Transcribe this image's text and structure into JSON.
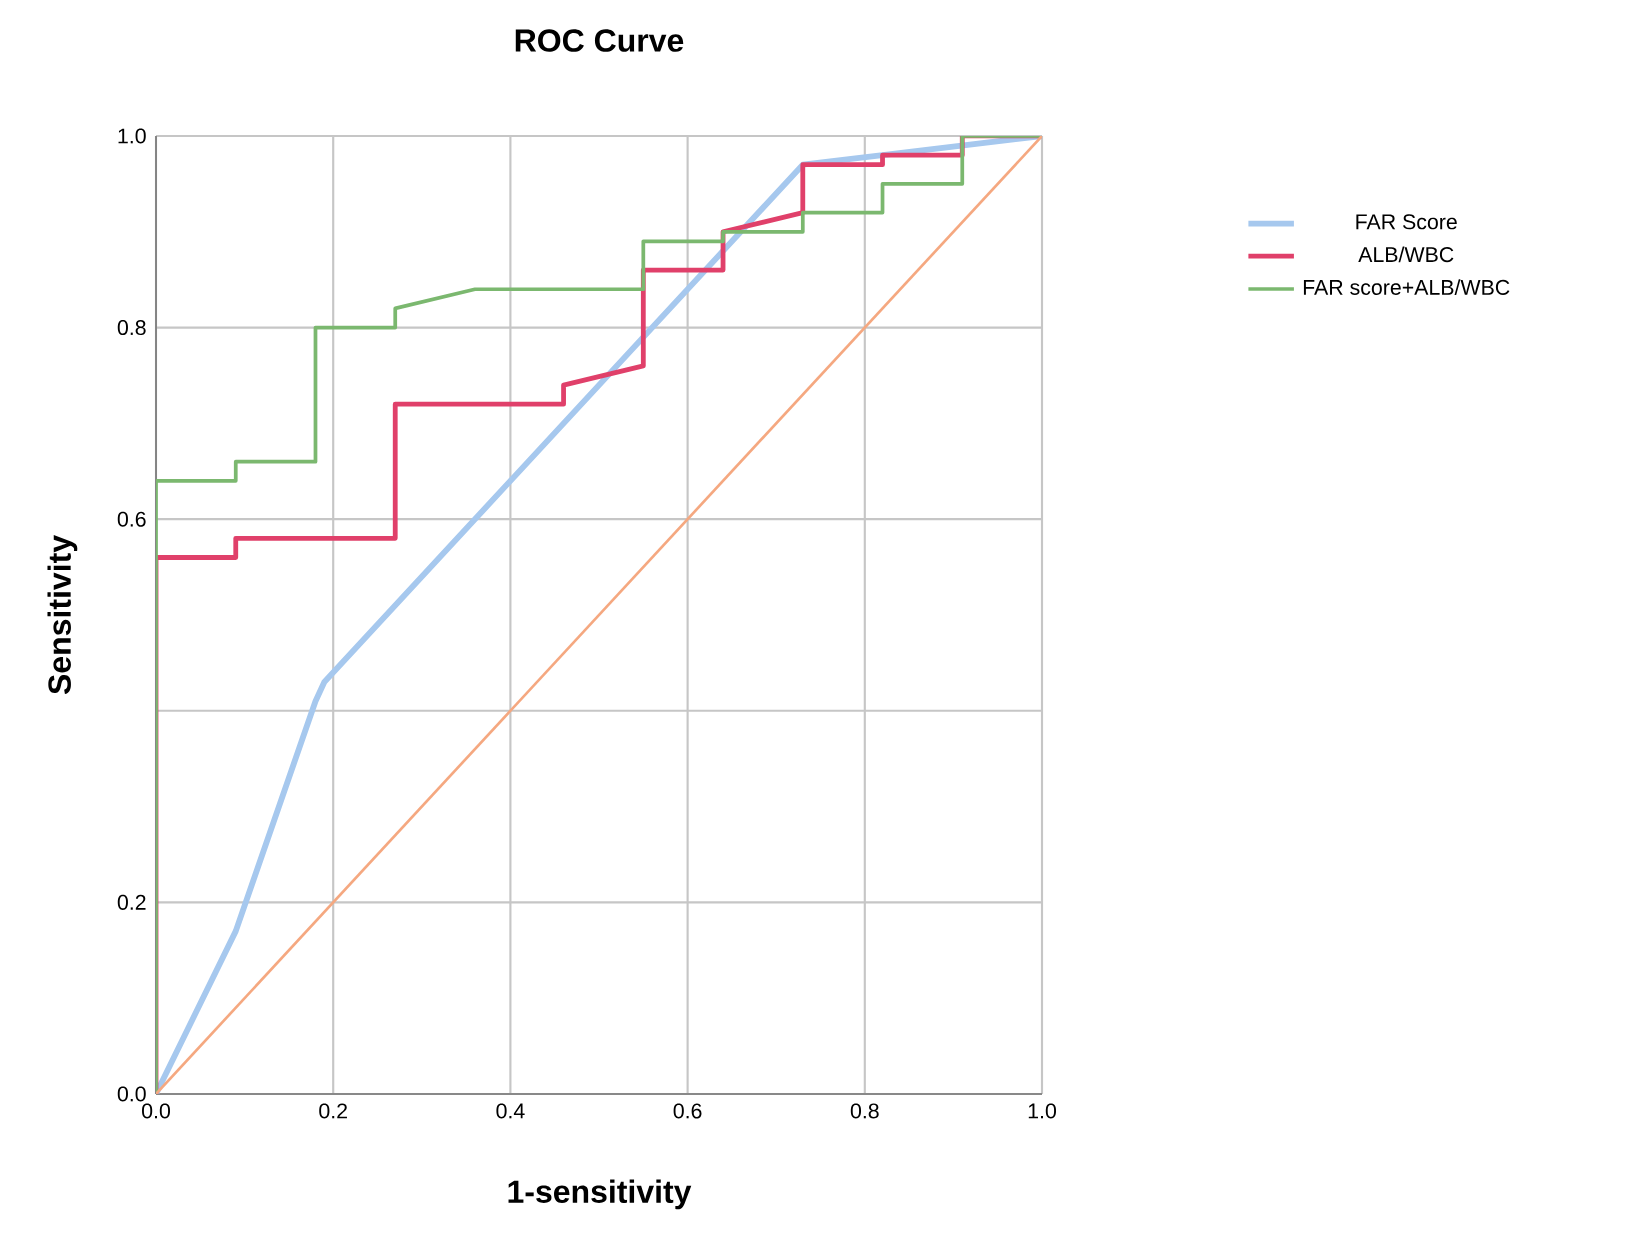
{
  "chart_data": {
    "type": "line",
    "title": "ROC Curve",
    "xlabel": "1-sensitivity",
    "ylabel": "Sensitivity",
    "xlim": [
      0,
      1
    ],
    "ylim": [
      0,
      1
    ],
    "xticks": [
      {
        "value": 0,
        "label": "0.0"
      },
      {
        "value": 0.2,
        "label": "0.2"
      },
      {
        "value": 0.4,
        "label": "0.4"
      },
      {
        "value": 0.6,
        "label": "0.6"
      },
      {
        "value": 0.8,
        "label": "0.8"
      },
      {
        "value": 1,
        "label": "1.0"
      }
    ],
    "yticks": [
      {
        "value": 0,
        "label": "0.0"
      },
      {
        "value": 0.2,
        "label": "0.2"
      },
      {
        "value": 0.4,
        "label": null
      },
      {
        "value": 0.6,
        "label": "0.6"
      },
      {
        "value": 0.8,
        "label": "0.8"
      },
      {
        "value": 1,
        "label": "1.0"
      }
    ],
    "grid": true,
    "legend": "right",
    "marker": "none",
    "line_style": "solid",
    "series": [
      {
        "name": "FAR Score",
        "color": "#a6c8ee",
        "x": [
          0,
          0.09,
          0.18,
          0.19,
          0.73,
          0.82,
          1
        ],
        "values": [
          0,
          0.17,
          0.41,
          0.43,
          0.97,
          0.98,
          1
        ]
      },
      {
        "name": "ALB/WBC",
        "color": "#e0406a",
        "x": [
          0,
          0,
          0.09,
          0.09,
          0.27,
          0.27,
          0.46,
          0.46,
          0.55,
          0.55,
          0.64,
          0.64,
          0.73,
          0.73,
          0.82,
          0.82,
          0.91,
          0.91,
          1
        ],
        "values": [
          0,
          0.56,
          0.56,
          0.58,
          0.58,
          0.72,
          0.72,
          0.74,
          0.76,
          0.86,
          0.86,
          0.9,
          0.92,
          0.97,
          0.97,
          0.98,
          0.98,
          1,
          1
        ]
      },
      {
        "name": "FAR score+ALB/WBC",
        "color": "#7bb86f",
        "x": [
          0,
          0,
          0.09,
          0.09,
          0.18,
          0.18,
          0.27,
          0.27,
          0.36,
          0.55,
          0.55,
          0.64,
          0.64,
          0.73,
          0.73,
          0.82,
          0.82,
          0.91,
          0.91,
          1
        ],
        "values": [
          0,
          0.64,
          0.64,
          0.66,
          0.66,
          0.8,
          0.8,
          0.82,
          0.84,
          0.84,
          0.89,
          0.89,
          0.9,
          0.9,
          0.92,
          0.92,
          0.95,
          0.95,
          1,
          1
        ]
      },
      {
        "color": "#f5a880",
        "x": [
          0,
          1
        ],
        "values": [
          0,
          1
        ]
      }
    ]
  }
}
